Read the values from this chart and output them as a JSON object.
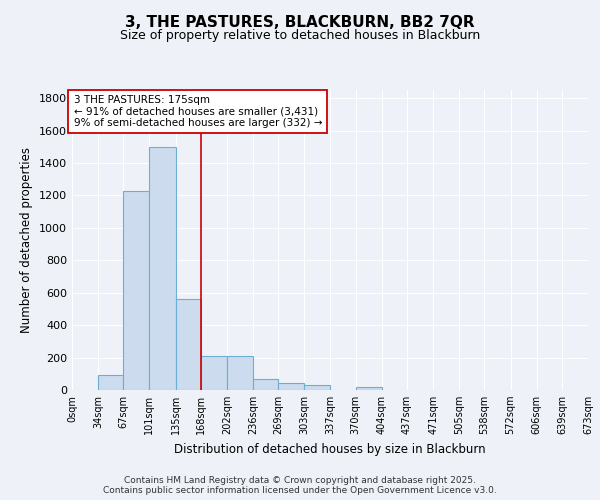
{
  "title": "3, THE PASTURES, BLACKBURN, BB2 7QR",
  "subtitle": "Size of property relative to detached houses in Blackburn",
  "xlabel": "Distribution of detached houses by size in Blackburn",
  "ylabel": "Number of detached properties",
  "bin_edges": [
    0,
    34,
    67,
    101,
    135,
    168,
    202,
    236,
    269,
    303,
    337,
    370,
    404,
    437,
    471,
    505,
    538,
    572,
    606,
    639,
    673
  ],
  "bar_heights": [
    0,
    95,
    1230,
    1500,
    560,
    210,
    210,
    70,
    45,
    30,
    0,
    20,
    0,
    0,
    0,
    0,
    0,
    0,
    0,
    0
  ],
  "bar_color": "#ccdcee",
  "bar_edge_color": "#6baed6",
  "property_line_x": 168,
  "property_line_color": "#cc0000",
  "annotation_text": "3 THE PASTURES: 175sqm\n← 91% of detached houses are smaller (3,431)\n9% of semi-detached houses are larger (332) →",
  "annotation_box_color": "#ffffff",
  "annotation_box_edge": "#cc0000",
  "ylim": [
    0,
    1850
  ],
  "yticks": [
    0,
    200,
    400,
    600,
    800,
    1000,
    1200,
    1400,
    1600,
    1800
  ],
  "tick_labels": [
    "0sqm",
    "34sqm",
    "67sqm",
    "101sqm",
    "135sqm",
    "168sqm",
    "202sqm",
    "236sqm",
    "269sqm",
    "303sqm",
    "337sqm",
    "370sqm",
    "404sqm",
    "437sqm",
    "471sqm",
    "505sqm",
    "538sqm",
    "572sqm",
    "606sqm",
    "639sqm",
    "673sqm"
  ],
  "footer_text": "Contains HM Land Registry data © Crown copyright and database right 2025.\nContains public sector information licensed under the Open Government Licence v3.0.",
  "bg_color": "#eef2f8",
  "grid_color": "#ffffff",
  "plot_bg_color": "#eef2f8"
}
